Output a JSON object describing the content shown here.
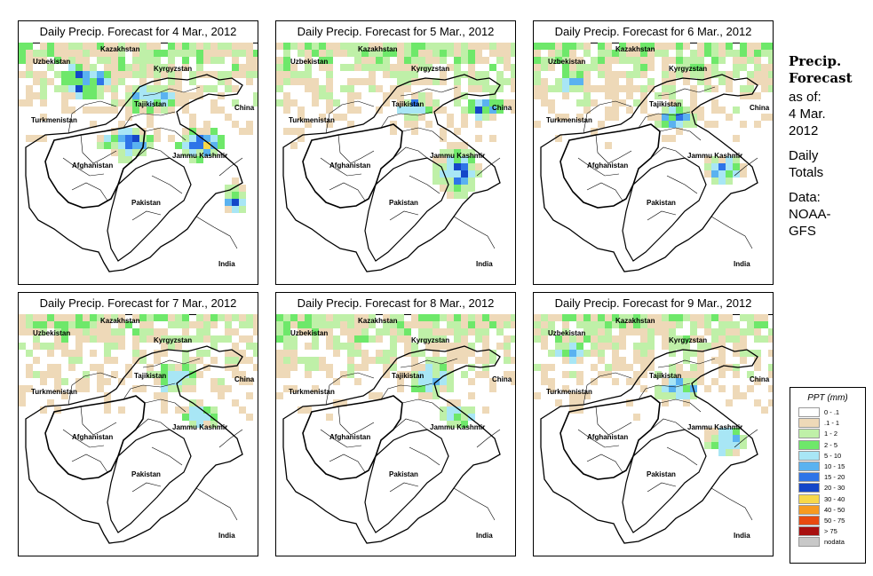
{
  "panels": [
    {
      "title": "Daily Precip. Forecast for  4 Mar., 2012",
      "intensity": 3
    },
    {
      "title": "Daily Precip. Forecast for  5 Mar., 2012",
      "intensity": 2
    },
    {
      "title": "Daily Precip. Forecast for  6 Mar., 2012",
      "intensity": 1
    },
    {
      "title": "Daily Precip. Forecast for  7 Mar., 2012",
      "intensity": 0
    },
    {
      "title": "Daily Precip. Forecast for  8 Mar., 2012",
      "intensity": 0
    },
    {
      "title": "Daily Precip. Forecast for  9 Mar., 2012",
      "intensity": 1
    }
  ],
  "map_labels": {
    "kazakhstan": "Kazakhstan",
    "uzbekistan": "Uzbekistan",
    "kyrgyzstan": "Kyrgyzstan",
    "tajikistan": "Tajikistan",
    "turkmenistan": "Turkmenistan",
    "china": "China",
    "jammu_kashmir": "Jammu Kashmir",
    "afghanistan": "Afghanistan",
    "pakistan": "Pakistan",
    "india": "India"
  },
  "side_panel": {
    "heading_line1": "Precip.",
    "heading_line2": "Forecast",
    "asof_line1": "as of:",
    "asof_line2": "4 Mar.",
    "asof_line3": "2012",
    "totals_line1": "Daily",
    "totals_line2": "Totals",
    "data_line1": "Data:",
    "data_line2": "NOAA-",
    "data_line3": "GFS"
  },
  "legend": {
    "title": "PPT (mm)",
    "items": [
      {
        "label": "0 - .1",
        "color": "#ffffff"
      },
      {
        "label": ".1 - 1",
        "color": "#eed9b8"
      },
      {
        "label": "1 - 2",
        "color": "#bff0a8"
      },
      {
        "label": "2 - 5",
        "color": "#6ee86a"
      },
      {
        "label": "5 - 10",
        "color": "#a8e6f5"
      },
      {
        "label": "10 - 15",
        "color": "#5ab2f0"
      },
      {
        "label": "15 - 20",
        "color": "#2e74e8"
      },
      {
        "label": "20 - 30",
        "color": "#1446c8"
      },
      {
        "label": "30 - 40",
        "color": "#f7d84a"
      },
      {
        "label": "40 - 50",
        "color": "#f79a20"
      },
      {
        "label": "50 - 75",
        "color": "#e84a10"
      },
      {
        "label": "> 75",
        "color": "#a81010"
      },
      {
        "label": "nodata",
        "color": "#c8c8c8"
      }
    ]
  }
}
